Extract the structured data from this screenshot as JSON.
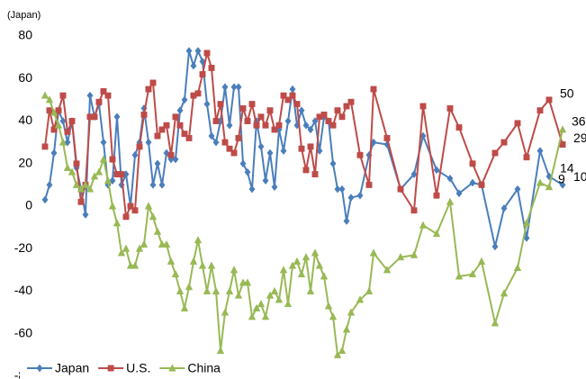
{
  "chart_data": {
    "type": "line",
    "y_label": "(Japan)",
    "x": [
      0,
      1,
      2,
      3,
      4,
      5,
      6,
      7,
      8,
      9,
      10,
      11,
      12,
      13,
      14,
      15,
      16,
      17,
      18,
      19,
      20,
      21,
      22,
      23,
      24,
      25,
      26,
      27,
      28,
      29,
      30,
      31,
      32,
      33,
      34,
      35,
      36,
      37,
      38,
      39,
      40,
      41,
      42,
      43,
      44,
      45,
      46,
      47,
      48,
      49,
      50,
      51,
      52,
      53,
      54,
      55,
      56,
      57,
      58,
      59,
      60,
      61,
      62,
      63,
      64,
      65,
      66,
      67,
      68,
      70,
      72,
      73,
      76,
      79,
      82,
      84,
      87,
      90,
      92,
      95,
      97,
      100,
      102,
      105,
      107,
      110,
      112,
      115
    ],
    "xlim": [
      0,
      115
    ],
    "ylim": [
      -80,
      80
    ],
    "yticks": [
      -80,
      -60,
      -40,
      -20,
      0,
      20,
      40,
      60,
      80
    ],
    "legend": "bottom",
    "series": [
      {
        "name": "Japan",
        "color": "#4a7ebb",
        "marker": "diamond",
        "labeled": [
          86,
          87
        ],
        "values": [
          3,
          10,
          25,
          45,
          40,
          30,
          40,
          18,
          8,
          -4,
          52,
          42,
          48,
          30,
          10,
          12,
          42,
          10,
          15,
          0,
          24,
          30,
          46,
          30,
          10,
          20,
          10,
          25,
          22,
          22,
          45,
          50,
          73,
          66,
          73,
          68,
          48,
          33,
          30,
          40,
          56,
          38,
          56,
          56,
          20,
          16,
          8,
          40,
          28,
          12,
          25,
          9,
          36,
          26,
          40,
          55,
          38,
          45,
          38,
          36,
          40,
          26,
          42,
          40,
          20,
          8,
          8,
          -7,
          4,
          5,
          24,
          30,
          29,
          8,
          15,
          33,
          17,
          13,
          6,
          11,
          10,
          -19,
          -1,
          8,
          -15,
          26,
          14,
          10
        ]
      },
      {
        "name": "U.S.",
        "color": "#be4b48",
        "marker": "square",
        "labeled": [
          86,
          87
        ],
        "values": [
          28,
          45,
          36,
          45,
          52,
          35,
          40,
          20,
          2,
          10,
          42,
          42,
          49,
          54,
          52,
          22,
          15,
          15,
          -5,
          0,
          -2,
          28,
          43,
          55,
          58,
          33,
          36,
          38,
          24,
          42,
          38,
          34,
          32,
          52,
          53,
          62,
          72,
          65,
          40,
          48,
          30,
          27,
          25,
          32,
          46,
          40,
          48,
          38,
          42,
          38,
          45,
          36,
          38,
          52,
          50,
          52,
          48,
          27,
          17,
          28,
          15,
          42,
          43,
          40,
          38,
          45,
          42,
          47,
          49,
          24,
          10,
          55,
          32,
          8,
          -2,
          47,
          5,
          46,
          37,
          20,
          10,
          25,
          30,
          39,
          23,
          45,
          50,
          29
        ]
      },
      {
        "name": "China",
        "color": "#98b954",
        "marker": "triangle",
        "labeled": [
          86,
          87
        ],
        "values": [
          52,
          50,
          44,
          38,
          30,
          18,
          16,
          10,
          8,
          10,
          8,
          14,
          16,
          22,
          12,
          0,
          -8,
          -22,
          -20,
          -28,
          -28,
          -20,
          -18,
          0,
          -5,
          -12,
          -18,
          -18,
          -26,
          -32,
          -40,
          -48,
          -38,
          -26,
          -16,
          -28,
          -40,
          -28,
          -40,
          -68,
          -50,
          -40,
          -30,
          -42,
          -36,
          -36,
          -52,
          -48,
          -46,
          -52,
          -42,
          -40,
          -44,
          -30,
          -46,
          -28,
          -26,
          -32,
          -24,
          -40,
          -22,
          -28,
          -33,
          -47,
          -52,
          -70,
          -68,
          -58,
          -50,
          -44,
          -40,
          -22,
          -30,
          -24,
          -23,
          -9,
          -13,
          2,
          -33,
          -32,
          -26,
          -55,
          -41,
          -29,
          -8,
          11,
          9,
          36
        ]
      }
    ]
  }
}
